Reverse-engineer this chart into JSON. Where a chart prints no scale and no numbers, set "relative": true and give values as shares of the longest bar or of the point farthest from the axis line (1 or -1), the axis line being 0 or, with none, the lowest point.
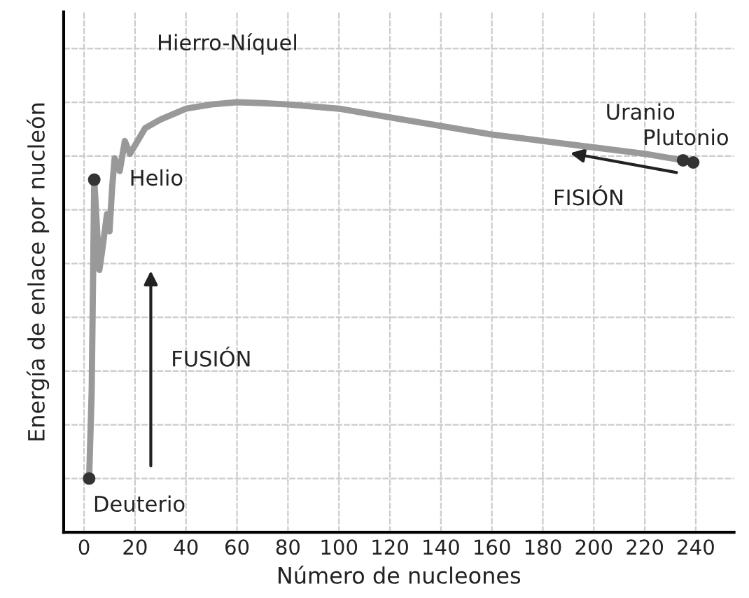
{
  "chart_data": {
    "type": "line",
    "relative": true,
    "xlabel": "Número de nucleones",
    "ylabel": "Energía de enlace por nucleón",
    "xlim": [
      -8,
      255
    ],
    "xticks": [
      0,
      20,
      40,
      60,
      80,
      100,
      120,
      140,
      160,
      180,
      200,
      220,
      240
    ],
    "grid": true,
    "series": [
      {
        "color": "#999999",
        "marker": "none",
        "x": [
          2,
          3,
          4,
          6,
          7,
          9,
          10,
          11,
          12,
          14,
          16,
          18,
          20,
          24,
          30,
          40,
          50,
          60,
          70,
          80,
          100,
          120,
          140,
          160,
          180,
          200,
          220,
          235
        ],
        "values": [
          0.125,
          0.33,
          0.82,
          0.61,
          0.65,
          0.74,
          0.7,
          0.8,
          0.87,
          0.84,
          0.91,
          0.88,
          0.9,
          0.94,
          0.96,
          0.985,
          0.995,
          1.0,
          0.998,
          0.995,
          0.985,
          0.965,
          0.945,
          0.925,
          0.91,
          0.895,
          0.88,
          0.865
        ]
      },
      {
        "type": "scatter",
        "color": "#333333",
        "marker": "circle",
        "x": [
          2,
          4,
          235,
          239
        ],
        "values": [
          0.125,
          0.82,
          0.865,
          0.86
        ]
      }
    ],
    "annotations": [
      {
        "text": "Deuterio",
        "x": 2,
        "y": 0.125
      },
      {
        "text": "Helio",
        "x": 4,
        "y": 0.82
      },
      {
        "text": "Hierro-Níquel",
        "x": 56,
        "y": 1.0
      },
      {
        "text": "Uranio",
        "x": 235,
        "y": 0.865
      },
      {
        "text": "Plutonio",
        "x": 239,
        "y": 0.86
      },
      "FUSIÓN",
      "FISIÓN"
    ]
  }
}
